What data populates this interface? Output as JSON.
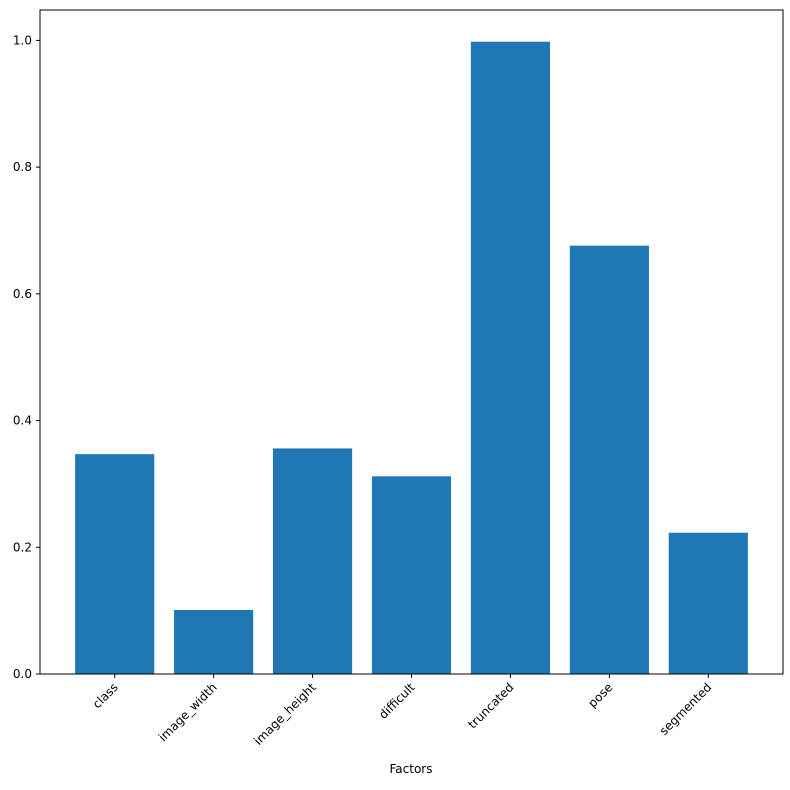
{
  "chart_data": {
    "type": "bar",
    "x_label": "Factors",
    "categories": [
      "class",
      "image_width",
      "image_height",
      "difficult",
      "truncated",
      "pose",
      "segmented"
    ],
    "values": [
      0.347,
      0.101,
      0.356,
      0.312,
      0.998,
      0.676,
      0.223
    ],
    "color": "#1f77b4",
    "ylim": [
      0,
      1.048
    ],
    "yticks": [
      {
        "value": 0,
        "label": "0.0"
      },
      0.2,
      0.4,
      0.6,
      0.8,
      {
        "value": 1,
        "label": "1.0"
      }
    ],
    "grid": false
  }
}
